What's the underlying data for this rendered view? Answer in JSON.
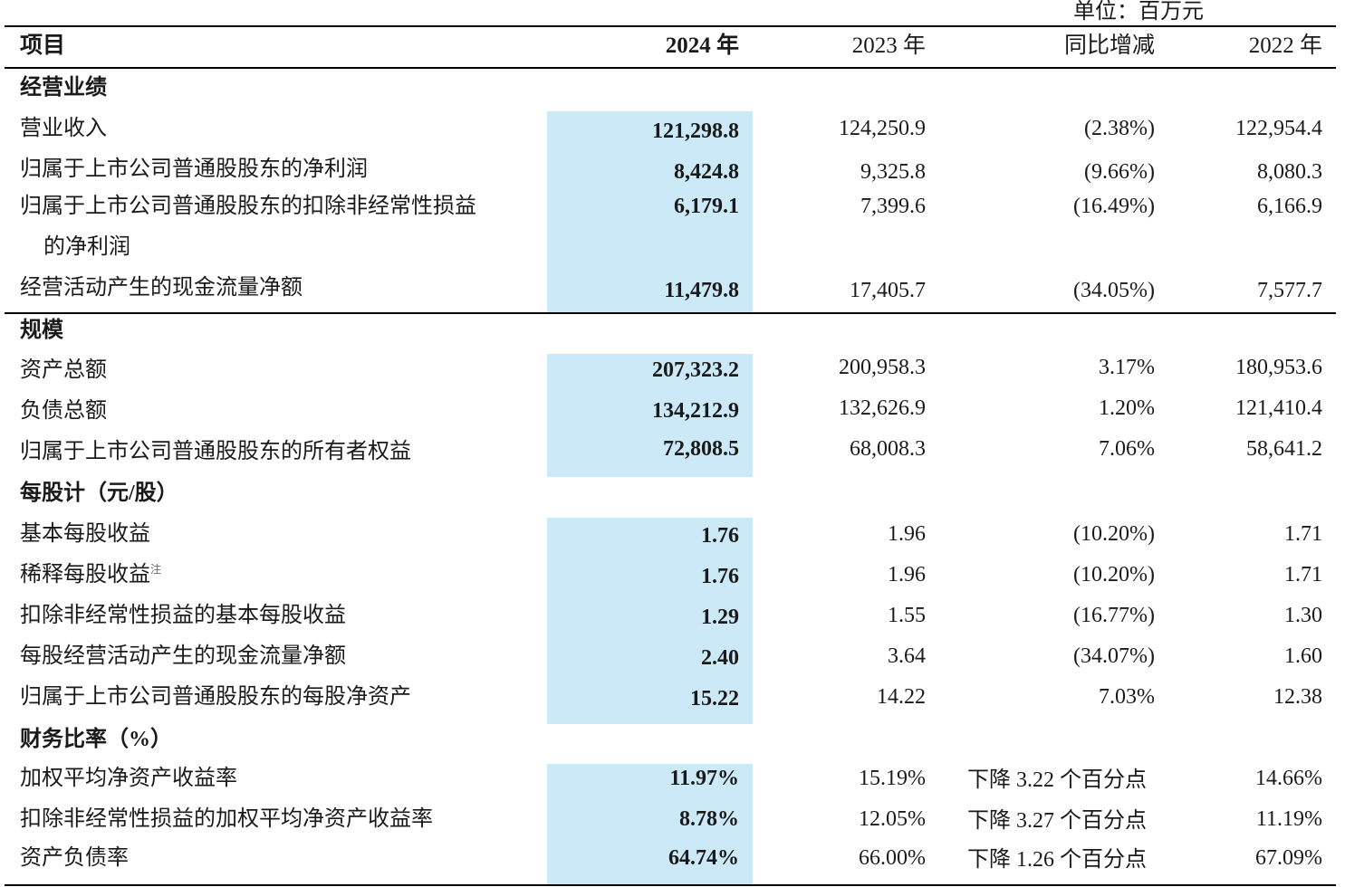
{
  "unit_note": "单位：百万元",
  "header": {
    "item": "项目",
    "col_2024": "2024 年",
    "col_2023": "2023 年",
    "col_yoy": "同比增减",
    "col_2022": "2022 年"
  },
  "sections": [
    {
      "title": "经营业绩",
      "rows": [
        {
          "label": "营业收入",
          "v2024": "121,298.8",
          "v2023": "124,250.9",
          "yoy": "(2.38%)",
          "v2022": "122,954.4"
        },
        {
          "label": "归属于上市公司普通股股东的净利润",
          "v2024": "8,424.8",
          "v2023": "9,325.8",
          "yoy": "(9.66%)",
          "v2022": "8,080.3"
        },
        {
          "label": "归属于上市公司普通股股东的扣除非经常性损益",
          "label_cont": "的净利润",
          "v2024": "6,179.1",
          "v2023": "7,399.6",
          "yoy": "(16.49%)",
          "v2022": "6,166.9"
        },
        {
          "label": "经营活动产生的现金流量净额",
          "v2024": "11,479.8",
          "v2023": "17,405.7",
          "yoy": "(34.05%)",
          "v2022": "7,577.7"
        }
      ]
    },
    {
      "title": "规模",
      "rows": [
        {
          "label": "资产总额",
          "v2024": "207,323.2",
          "v2023": "200,958.3",
          "yoy": "3.17%",
          "v2022": "180,953.6"
        },
        {
          "label": "负债总额",
          "v2024": "134,212.9",
          "v2023": "132,626.9",
          "yoy": "1.20%",
          "v2022": "121,410.4"
        },
        {
          "label": "归属于上市公司普通股股东的所有者权益",
          "v2024": "72,808.5",
          "v2023": "68,008.3",
          "yoy": "7.06%",
          "v2022": "58,641.2"
        }
      ]
    },
    {
      "title": "每股计（元/股）",
      "rows": [
        {
          "label": "基本每股收益",
          "v2024": "1.76",
          "v2023": "1.96",
          "yoy": "(10.20%)",
          "v2022": "1.71"
        },
        {
          "label": "稀释每股收益",
          "note": "注",
          "v2024": "1.76",
          "v2023": "1.96",
          "yoy": "(10.20%)",
          "v2022": "1.71"
        },
        {
          "label": "扣除非经常性损益的基本每股收益",
          "v2024": "1.29",
          "v2023": "1.55",
          "yoy": "(16.77%)",
          "v2022": "1.30"
        },
        {
          "label": "每股经营活动产生的现金流量净额",
          "v2024": "2.40",
          "v2023": "3.64",
          "yoy": "(34.07%)",
          "v2022": "1.60"
        },
        {
          "label": "归属于上市公司普通股股东的每股净资产",
          "v2024": "15.22",
          "v2023": "14.22",
          "yoy": "7.03%",
          "v2022": "12.38"
        }
      ]
    },
    {
      "title": "财务比率（%）",
      "rows": [
        {
          "label": "加权平均净资产收益率",
          "v2024": "11.97%",
          "v2023": "15.19%",
          "yoy": "下降 3.22 个百分点",
          "v2022": "14.66%"
        },
        {
          "label": "扣除非经常性损益的加权平均净资产收益率",
          "v2024": "8.78%",
          "v2023": "12.05%",
          "yoy": "下降 3.27 个百分点",
          "v2022": "11.19%"
        },
        {
          "label": "资产负债率",
          "v2024": "64.74%",
          "v2023": "66.00%",
          "yoy": "下降 1.26 个百分点",
          "v2022": "67.09%"
        }
      ]
    }
  ]
}
